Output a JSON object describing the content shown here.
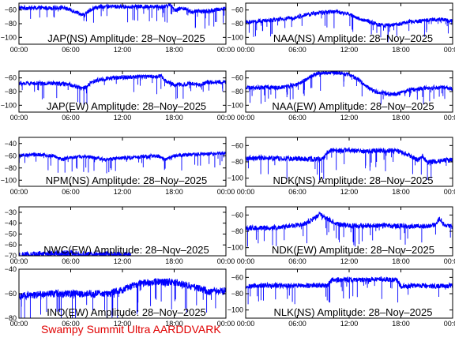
{
  "footer": "Swampy Summit Ultra AARDDVARK",
  "colors": {
    "trace": "#0000ff",
    "axes": "#000000",
    "footer": "#e00000"
  },
  "chart_data": [
    {
      "type": "line",
      "title": "JAP(NS) Amplitude: 28–Nov–2025",
      "xticks": [
        "00:00",
        "06:00",
        "12:00",
        "18:00",
        "00:00"
      ],
      "xlim": [
        0,
        24
      ],
      "yticks": [
        -60,
        -80,
        -100
      ],
      "ylim": [
        -110,
        -50
      ],
      "series": [
        {
          "x": [
            0,
            2,
            4,
            5,
            6.5,
            7.5,
            8.5,
            9.5,
            12,
            13,
            14,
            15,
            16,
            17,
            17.5,
            18,
            19,
            20,
            21,
            22,
            23,
            24
          ],
          "values": [
            -57,
            -57,
            -57,
            -56,
            -62,
            -68,
            -58,
            -55,
            -55,
            -55,
            -55,
            -55,
            -55,
            -55,
            -52,
            -60,
            -57,
            -63,
            -62,
            -62,
            -59,
            -58
          ]
        }
      ]
    },
    {
      "type": "line",
      "title": "NAA(NS) Amplitude: 28–Nov–2025",
      "xticks": [
        "00:00",
        "06:00",
        "12:00",
        "18:00",
        "00:00"
      ],
      "xlim": [
        0,
        24
      ],
      "yticks": [
        -60,
        -80,
        -100
      ],
      "ylim": [
        -110,
        -50
      ],
      "series": [
        {
          "x": [
            0,
            2,
            4,
            6,
            8,
            10,
            12,
            13,
            14,
            15,
            16,
            17,
            18,
            19,
            20,
            21,
            22,
            23,
            24
          ],
          "values": [
            -78,
            -76,
            -74,
            -70,
            -65,
            -62,
            -66,
            -72,
            -76,
            -80,
            -83,
            -82,
            -80,
            -77,
            -77,
            -75,
            -74,
            -74,
            -76
          ]
        }
      ]
    },
    {
      "type": "line",
      "title": "JAP(EW) Amplitude: 28–Nov–2025",
      "xticks": [
        "00:00",
        "06:00",
        "12:00",
        "18:00",
        "00:00"
      ],
      "xlim": [
        0,
        24
      ],
      "yticks": [
        -60,
        -80,
        -100
      ],
      "ylim": [
        -110,
        -50
      ],
      "series": [
        {
          "x": [
            0,
            2,
            4,
            6,
            7.5,
            8.5,
            9.5,
            11,
            12,
            14,
            16,
            16.5,
            17,
            18,
            19,
            20,
            21,
            22,
            23,
            24
          ],
          "values": [
            -68,
            -68,
            -68,
            -70,
            -76,
            -66,
            -62,
            -60,
            -59,
            -58,
            -58,
            -57,
            -64,
            -70,
            -70,
            -68,
            -70,
            -66,
            -66,
            -66
          ]
        }
      ]
    },
    {
      "type": "line",
      "title": "NAA(EW) Amplitude: 28–Nov–2025",
      "xticks": [
        "00:00",
        "06:00",
        "12:00",
        "18:00",
        "00:00"
      ],
      "xlim": [
        0,
        24
      ],
      "yticks": [
        -60,
        -80,
        -100
      ],
      "ylim": [
        -110,
        -50
      ],
      "series": [
        {
          "x": [
            0,
            2,
            4,
            5,
            6,
            7,
            8,
            9,
            10,
            11,
            12,
            13,
            14,
            15,
            16,
            17,
            18,
            19,
            20,
            21,
            22,
            23,
            24
          ],
          "values": [
            -75,
            -74,
            -74,
            -72,
            -70,
            -62,
            -55,
            -52,
            -52,
            -53,
            -55,
            -62,
            -72,
            -80,
            -82,
            -84,
            -82,
            -78,
            -76,
            -75,
            -74,
            -74,
            -76
          ]
        }
      ]
    },
    {
      "type": "line",
      "title": "NPM(NS) Amplitude: 28–Nov–2025",
      "xticks": [
        "00:00",
        "06:00",
        "12:00",
        "18:00",
        "00:00"
      ],
      "xlim": [
        0,
        24
      ],
      "yticks": [
        -40,
        -60,
        -80,
        -100
      ],
      "ylim": [
        -110,
        -30
      ],
      "series": [
        {
          "x": [
            0,
            2,
            4,
            5,
            6,
            8,
            9,
            10,
            12,
            14,
            16,
            17,
            18,
            20,
            22,
            24
          ],
          "values": [
            -60,
            -58,
            -60,
            -66,
            -62,
            -62,
            -64,
            -66,
            -64,
            -62,
            -60,
            -66,
            -60,
            -58,
            -57,
            -56
          ]
        }
      ]
    },
    {
      "type": "line",
      "title": "NDK(NS) Amplitude: 28–Nov–2025",
      "xticks": [
        "00:00",
        "06:00",
        "12:00",
        "18:00",
        "00:00"
      ],
      "xlim": [
        0,
        24
      ],
      "yticks": [
        -60,
        -80,
        -100
      ],
      "ylim": [
        -110,
        -50
      ],
      "series": [
        {
          "x": [
            0,
            2,
            4,
            6,
            8,
            9,
            9.5,
            10,
            12,
            14,
            16,
            17,
            18,
            19,
            20,
            20.5,
            21,
            22,
            23,
            24
          ],
          "values": [
            -76,
            -75,
            -76,
            -76,
            -77,
            -76,
            -68,
            -66,
            -66,
            -67,
            -66,
            -66,
            -68,
            -72,
            -78,
            -73,
            -80,
            -80,
            -78,
            -78
          ]
        }
      ]
    },
    {
      "type": "line",
      "title": "NWC(EW) Amplitude: 28–Nov–2025",
      "xticks": [
        "00:00",
        "06:00",
        "12:00",
        "18:00",
        "00:00"
      ],
      "xlim": [
        0,
        24
      ],
      "yticks": [
        -30,
        -40,
        -50,
        -60,
        -70
      ],
      "ylim": [
        -70,
        -25
      ],
      "series": [
        {
          "x": [
            0,
            1,
            2,
            3,
            4,
            6,
            8,
            10,
            12,
            13
          ],
          "values": [
            -70,
            -69,
            -69,
            -68,
            -68,
            -68,
            -69,
            -69,
            -69,
            -70
          ]
        }
      ]
    },
    {
      "type": "line",
      "title": "NDK(EW) Amplitude: 28–Nov–2025",
      "xticks": [
        "00:00",
        "06:00",
        "12:00",
        "18:00",
        "00:00"
      ],
      "xlim": [
        0,
        24
      ],
      "yticks": [
        -60,
        -80,
        -100
      ],
      "ylim": [
        -110,
        -50
      ],
      "series": [
        {
          "x": [
            0,
            2,
            4,
            6,
            7,
            8,
            8.5,
            9,
            10,
            11,
            12,
            14,
            16,
            17,
            18,
            19,
            20,
            21,
            22,
            22.5,
            23,
            24
          ],
          "values": [
            -76,
            -76,
            -75,
            -72,
            -70,
            -64,
            -58,
            -62,
            -68,
            -72,
            -73,
            -73,
            -73,
            -74,
            -73,
            -74,
            -74,
            -74,
            -72,
            -64,
            -72,
            -74
          ]
        }
      ]
    },
    {
      "type": "line",
      "title": "INO(EW) Amplitude: 28–Nov–2025",
      "xticks": [
        "00:00",
        "06:00",
        "12:00",
        "18:00",
        "00:00"
      ],
      "xlim": [
        0,
        24
      ],
      "yticks": [
        -40,
        -60,
        -80
      ],
      "ylim": [
        -80,
        -40
      ],
      "series": [
        {
          "x": [
            0,
            2,
            4,
            6,
            8,
            10,
            12,
            13,
            14,
            15,
            16,
            18,
            20,
            22,
            24
          ],
          "values": [
            -62,
            -61,
            -60,
            -60,
            -60,
            -60,
            -57,
            -54,
            -52,
            -51,
            -50,
            -51,
            -54,
            -58,
            -58
          ]
        }
      ]
    },
    {
      "type": "line",
      "title": "NLK(NS) Amplitude: 28–Nov–2025",
      "xticks": [
        "00:00",
        "06:00",
        "12:00",
        "18:00",
        "00:00"
      ],
      "xlim": [
        0,
        24
      ],
      "yticks": [
        -60,
        -80,
        -100
      ],
      "ylim": [
        -110,
        -50
      ],
      "series": [
        {
          "x": [
            0,
            2,
            4,
            6,
            8,
            9.5,
            10,
            12,
            14,
            16,
            17.5,
            18,
            20,
            22,
            24
          ],
          "values": [
            -71,
            -70,
            -70,
            -70,
            -70,
            -70,
            -63,
            -63,
            -63,
            -62,
            -63,
            -71,
            -70,
            -71,
            -70
          ]
        }
      ]
    }
  ]
}
